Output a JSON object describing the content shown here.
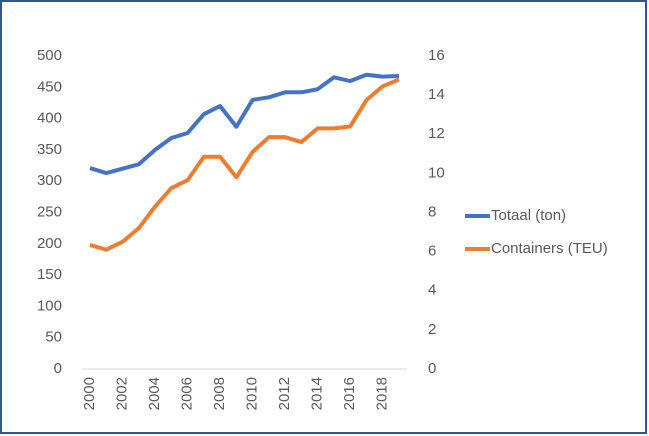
{
  "chart_data": {
    "type": "line",
    "x": [
      2000,
      2001,
      2002,
      2003,
      2004,
      2005,
      2006,
      2007,
      2008,
      2009,
      2010,
      2011,
      2012,
      2013,
      2014,
      2015,
      2016,
      2017,
      2018,
      2019
    ],
    "series": [
      {
        "name": "Totaal (ton)",
        "color": "#4472c4",
        "values": [
          321,
          313,
          320,
          327,
          350,
          369,
          377,
          407,
          420,
          387,
          430,
          434,
          442,
          442,
          447,
          466,
          460,
          470,
          467,
          468
        ]
      },
      {
        "name": "Containers (TEU)",
        "color": "#ed7d31",
        "axis": "y2",
        "values": [
          6.34,
          6.1,
          6.5,
          7.2,
          8.3,
          9.25,
          9.65,
          10.85,
          10.85,
          9.8,
          11.1,
          11.85,
          11.85,
          11.6,
          12.3,
          12.3,
          12.4,
          13.75,
          14.45,
          14.8
        ]
      }
    ],
    "xlim": [
      2000,
      2019
    ],
    "xticks": [
      2000,
      2002,
      2004,
      2006,
      2008,
      2010,
      2012,
      2014,
      2016,
      2018
    ],
    "ylim": [
      0,
      500
    ],
    "yticks": [
      0,
      50,
      100,
      150,
      200,
      250,
      300,
      350,
      400,
      450,
      500
    ],
    "y2lim": [
      0,
      16
    ],
    "y2ticks": [
      0,
      2,
      4,
      6,
      8,
      10,
      12,
      14,
      16
    ],
    "legend": "right"
  }
}
